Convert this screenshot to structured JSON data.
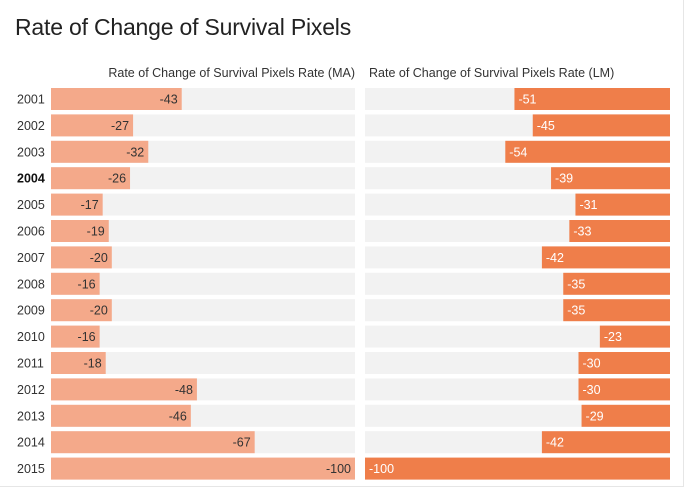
{
  "chart_data": {
    "type": "bar",
    "title": "Rate of Change of Survival Pixels",
    "categories": [
      "2001",
      "2002",
      "2003",
      "2004",
      "2005",
      "2006",
      "2007",
      "2008",
      "2009",
      "2010",
      "2011",
      "2012",
      "2013",
      "2014",
      "2015"
    ],
    "highlighted_category": "2004",
    "series": [
      {
        "name": "Rate of Change of Survival Pixels Rate (MA)",
        "values": [
          -43,
          -27,
          -32,
          -26,
          -17,
          -19,
          -20,
          -16,
          -20,
          -16,
          -18,
          -48,
          -46,
          -67,
          -100
        ],
        "color": "#f4a98a",
        "direction": "left-to-right"
      },
      {
        "name": "Rate of Change of Survival Pixels Rate (LM)",
        "values": [
          -51,
          -45,
          -54,
          -39,
          -31,
          -33,
          -42,
          -35,
          -35,
          -23,
          -30,
          -30,
          -29,
          -42,
          -100
        ],
        "color": "#ef7e4a",
        "direction": "right-to-left"
      }
    ],
    "xlim": [
      -100,
      0
    ],
    "track_color": "#f2f2f2",
    "grid": false,
    "legend": "column headers above each panel"
  }
}
